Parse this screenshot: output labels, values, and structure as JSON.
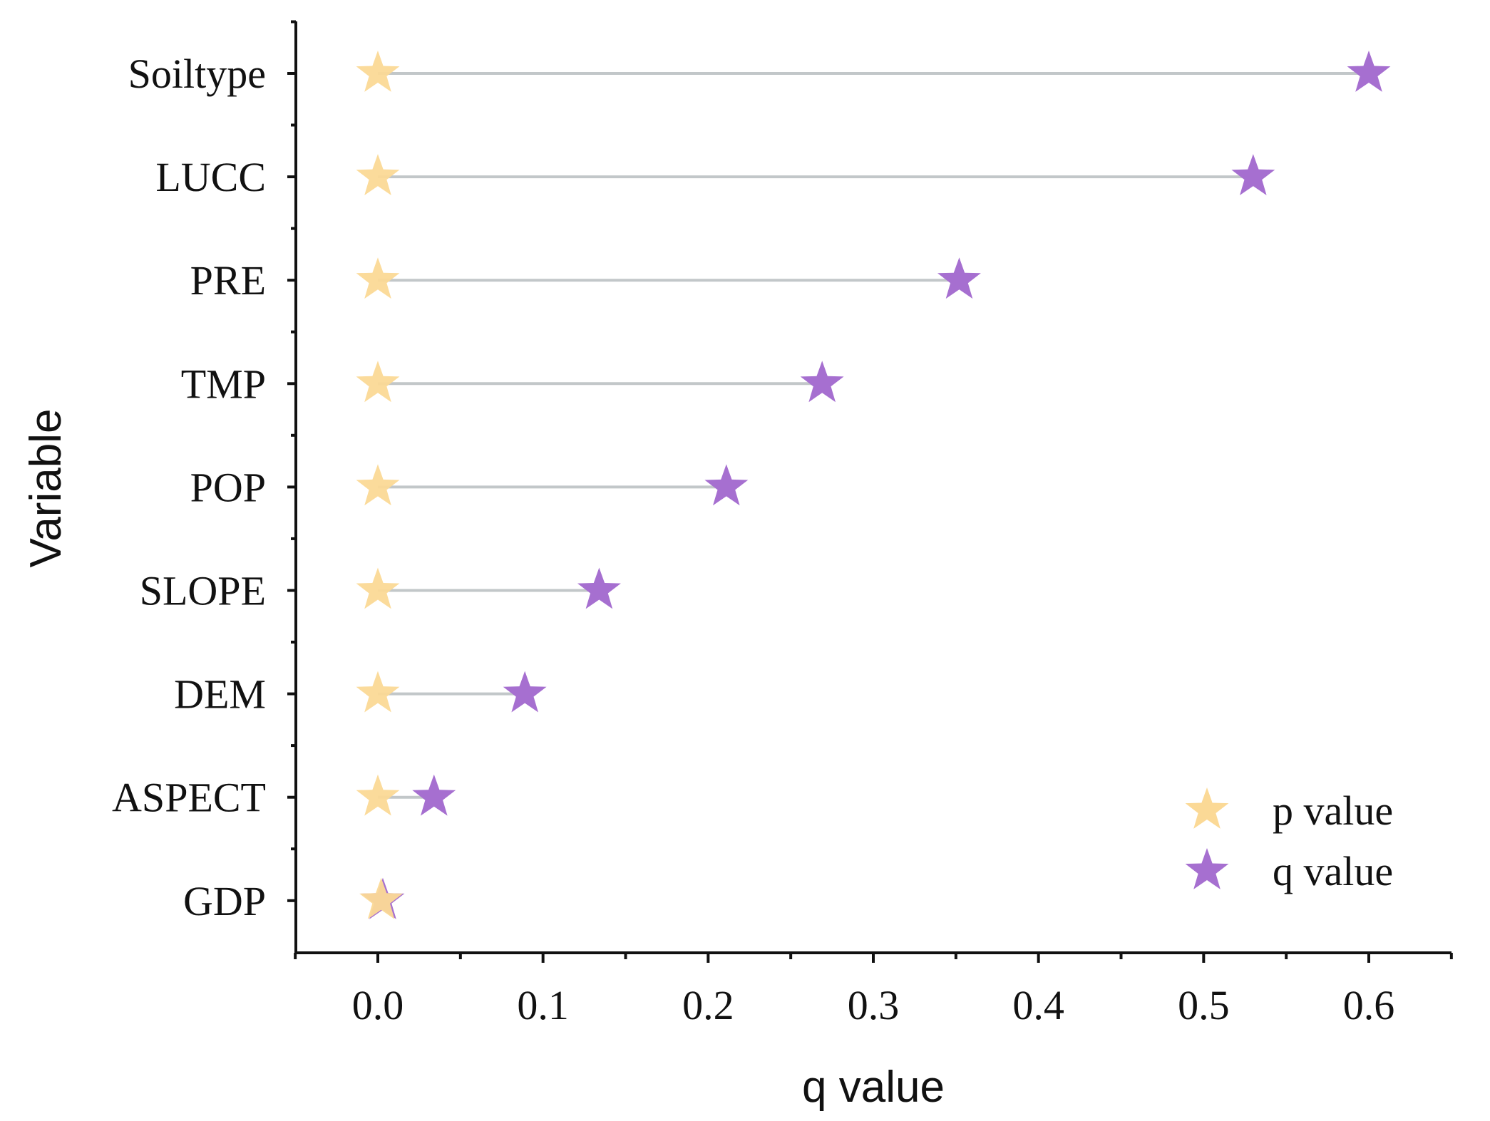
{
  "chart_data": {
    "type": "scatter",
    "subtype": "dumbbell",
    "title": "",
    "xlabel": "q value",
    "ylabel": "Variable",
    "xlim": [
      -0.05,
      0.65
    ],
    "xticks": [
      "0.0",
      "0.1",
      "0.2",
      "0.3",
      "0.4",
      "0.5",
      "0.6"
    ],
    "xtick_values": [
      0.0,
      0.1,
      0.2,
      0.3,
      0.4,
      0.5,
      0.6
    ],
    "categories": [
      "Soiltype",
      "LUCC",
      "PRE",
      "TMP",
      "POP",
      "SLOPE",
      "DEM",
      "ASPECT",
      "GDP"
    ],
    "series": [
      {
        "name": "p value",
        "color": "#fbd996",
        "marker": "star",
        "values": [
          0,
          0,
          0,
          0,
          0,
          0,
          0,
          0,
          0.002
        ]
      },
      {
        "name": "q value",
        "color": "#a66fd0",
        "marker": "star",
        "values": [
          0.6,
          0.53,
          0.352,
          0.269,
          0.211,
          0.134,
          0.089,
          0.034,
          0.003
        ]
      }
    ],
    "stem_color": "#c2c7c9",
    "legend": {
      "position": "bottom-right",
      "entries": [
        "p value",
        "q value"
      ]
    },
    "grid": false
  }
}
